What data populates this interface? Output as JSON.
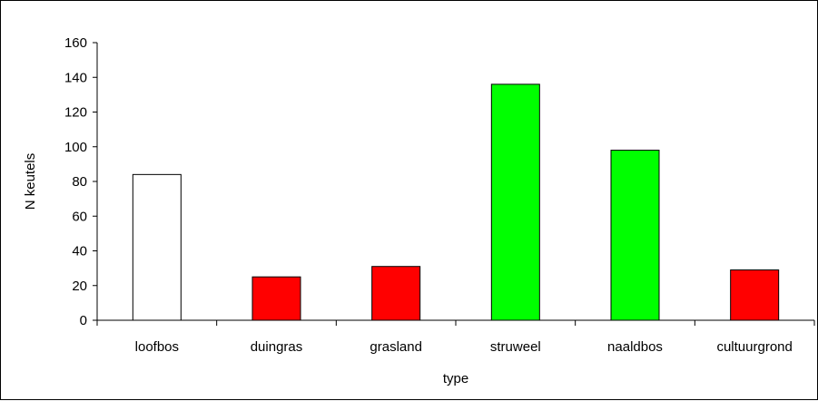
{
  "chart_data": {
    "type": "bar",
    "title": "",
    "xlabel": "type",
    "ylabel": "N keutels",
    "categories": [
      "loofbos",
      "duingras",
      "grasland",
      "struweel",
      "naaldbos",
      "cultuurgrond"
    ],
    "values": [
      84,
      25,
      31,
      136,
      98,
      29
    ],
    "colors": [
      "#ffffff",
      "#ff0000",
      "#ff0000",
      "#00ff00",
      "#00ff00",
      "#ff0000"
    ],
    "ylim": [
      0,
      160
    ],
    "yticks": [
      0,
      20,
      40,
      60,
      80,
      100,
      120,
      140,
      160
    ],
    "grid": false,
    "legend": "none"
  }
}
